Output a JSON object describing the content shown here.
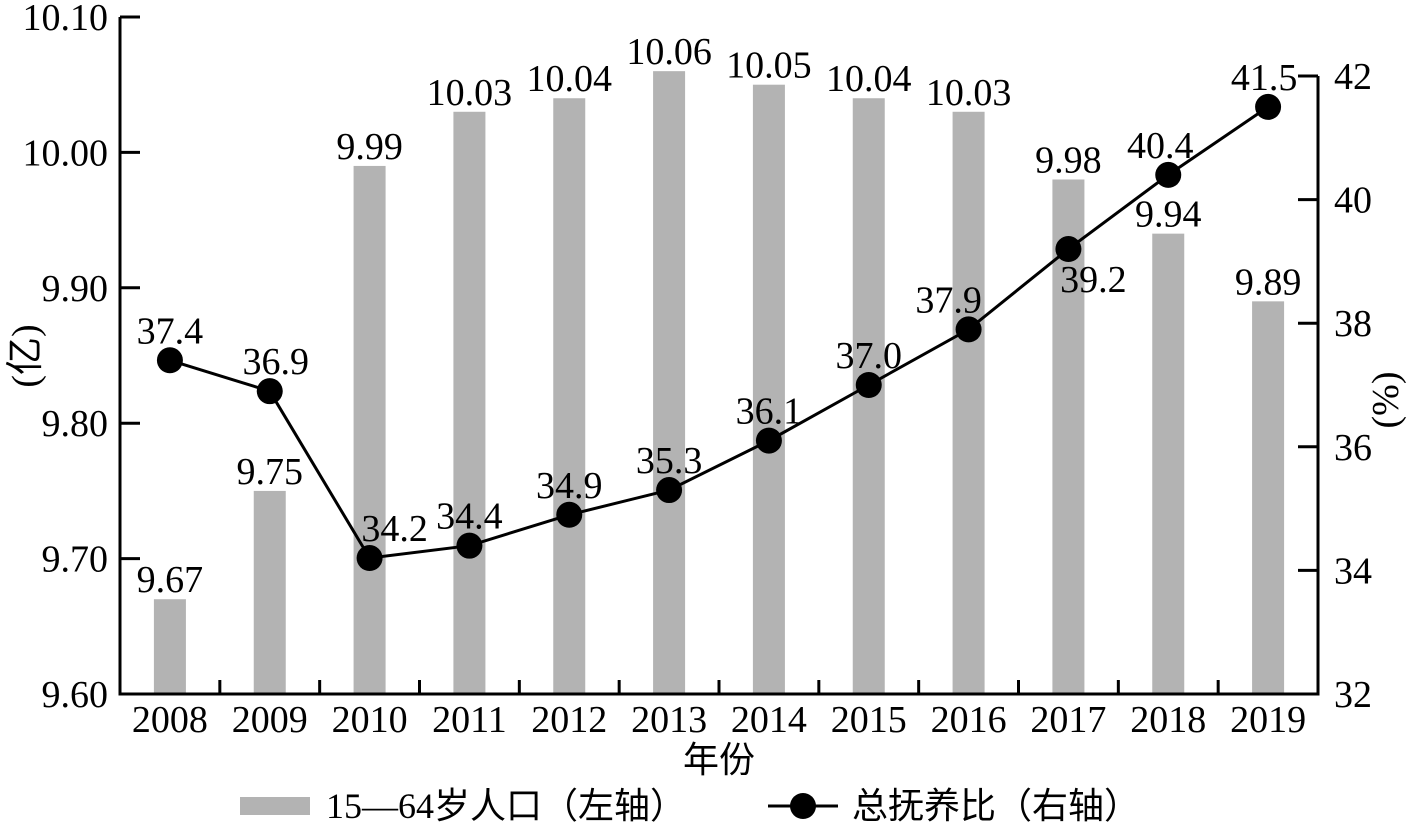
{
  "chart_data": {
    "type": "bar+line",
    "categories": [
      "2008",
      "2009",
      "2010",
      "2011",
      "2012",
      "2013",
      "2014",
      "2015",
      "2016",
      "2017",
      "2018",
      "2019"
    ],
    "series": [
      {
        "name": "15—64岁人口（左轴）",
        "type": "bar",
        "axis": "left",
        "unit": "亿",
        "values": [
          9.67,
          9.75,
          9.99,
          10.03,
          10.04,
          10.06,
          10.05,
          10.04,
          10.03,
          9.98,
          9.94,
          9.89
        ],
        "labels": [
          "9.67",
          "9.75",
          "9.99",
          "10.03",
          "10.04",
          "10.06",
          "10.05",
          "10.04",
          "10.03",
          "9.98",
          "9.94",
          "9.89"
        ]
      },
      {
        "name": "总抚养比（右轴）",
        "type": "line",
        "axis": "right",
        "unit": "%",
        "values": [
          37.4,
          36.9,
          34.2,
          34.4,
          34.9,
          35.3,
          36.1,
          37.0,
          37.9,
          39.2,
          40.4,
          41.5
        ],
        "labels": [
          "37.4",
          "36.9",
          "34.2",
          "34.4",
          "34.9",
          "35.3",
          "36.1",
          "37.0",
          "37.9",
          "39.2",
          "40.4",
          "41.5"
        ]
      }
    ],
    "left_axis": {
      "label": "(亿)",
      "min": 9.6,
      "max": 10.1,
      "ticks": [
        "10.10",
        "10.00",
        "9.90",
        "9.80",
        "9.70",
        "9.60"
      ]
    },
    "right_axis": {
      "label": "(%)",
      "min": 32,
      "max": 42,
      "ticks": [
        "42",
        "40",
        "38",
        "36",
        "34",
        "32"
      ]
    },
    "x_axis": {
      "label": "年份"
    },
    "legend": {
      "position": "bottom",
      "items": [
        {
          "marker": "bar-swatch",
          "label": "15—64岁人口（左轴）"
        },
        {
          "marker": "line-dot",
          "label": "总抚养比（右轴）"
        }
      ]
    },
    "colors": {
      "bar": "#b3b3b3",
      "line": "#000000",
      "text": "#000000",
      "background": "#ffffff"
    },
    "grid": false
  }
}
